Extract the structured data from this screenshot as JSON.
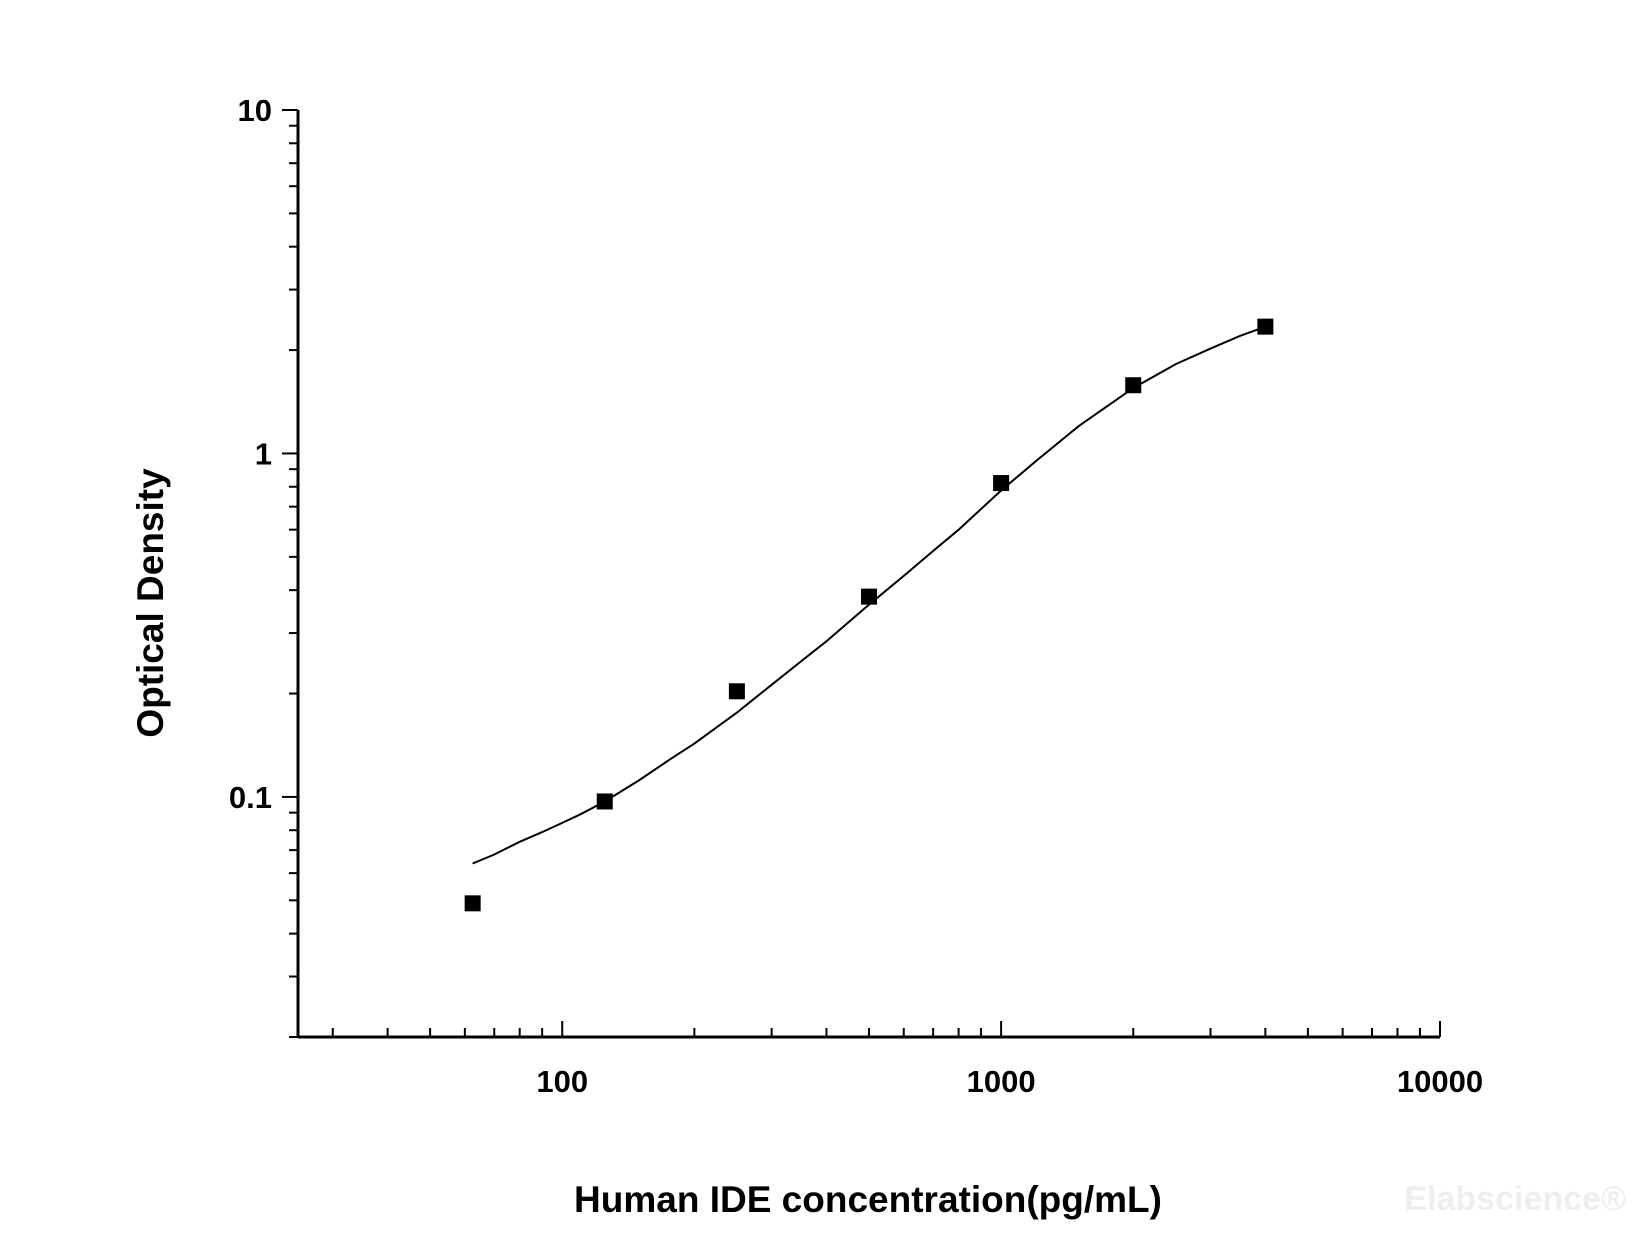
{
  "chart_data": {
    "type": "scatter",
    "title": "",
    "xlabel": "Human IDE concentration(pg/mL)",
    "ylabel": "Optical Density",
    "x_scale": "log",
    "y_scale": "log",
    "xlim": [
      25,
      10000
    ],
    "ylim": [
      0.02,
      10
    ],
    "x_ticks": [
      {
        "value": 100,
        "label": "100"
      },
      {
        "value": 1000,
        "label": "1000"
      },
      {
        "value": 10000,
        "label": "10000"
      }
    ],
    "y_ticks": [
      {
        "value": 10,
        "label": "10"
      },
      {
        "value": 1,
        "label": "1"
      },
      {
        "value": 0.1,
        "label": "0.1"
      }
    ],
    "grid": false,
    "legend": "none",
    "series": [
      {
        "type": "scatter",
        "marker": "square",
        "color": "#000000",
        "x": [
          62.5,
          125,
          250,
          500,
          1000,
          2000,
          4000
        ],
        "y": [
          0.049,
          0.097,
          0.203,
          0.383,
          0.82,
          1.58,
          2.34
        ]
      },
      {
        "type": "line",
        "color": "#000000",
        "x": [
          62.5,
          70,
          80,
          90,
          100,
          110,
          125,
          150,
          175,
          200,
          250,
          300,
          350,
          400,
          500,
          600,
          700,
          800,
          1000,
          1200,
          1500,
          2000,
          2500,
          3000,
          3500,
          4000
        ],
        "y": [
          0.064,
          0.068,
          0.074,
          0.079,
          0.084,
          0.089,
          0.097,
          0.112,
          0.128,
          0.143,
          0.176,
          0.212,
          0.248,
          0.284,
          0.363,
          0.44,
          0.52,
          0.6,
          0.78,
          0.95,
          1.2,
          1.55,
          1.82,
          2.02,
          2.2,
          2.34
        ]
      }
    ]
  },
  "watermark": {
    "text": "Elabscience®"
  }
}
